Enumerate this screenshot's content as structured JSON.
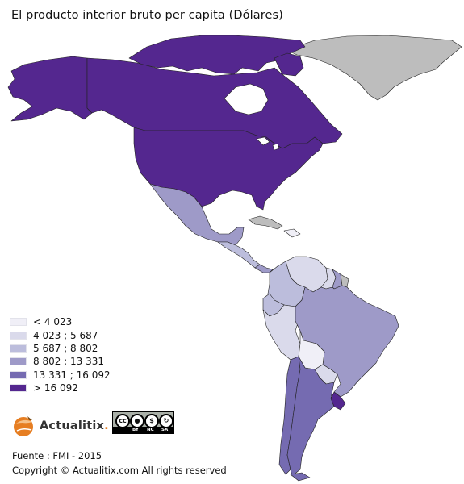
{
  "title": "El producto interior bruto per capita (Dólares)",
  "legend": {
    "items": [
      {
        "label": "< 4 023",
        "color": "#f0eff7"
      },
      {
        "label": "4 023 ; 5 687",
        "color": "#dadaeb"
      },
      {
        "label": "5 687 ; 8 802",
        "color": "#bcbddc"
      },
      {
        "label": "8 802 ; 13 331",
        "color": "#9e9ac8"
      },
      {
        "label": "13 331 ; 16 092",
        "color": "#756bb1"
      },
      {
        "label": "> 16 092",
        "color": "#54278f"
      }
    ]
  },
  "map": {
    "no_data_color": "#bdbdbd",
    "border_color": "#222222",
    "regions": [
      {
        "name": "Canada",
        "class": "> 16 092"
      },
      {
        "name": "United States",
        "class": "> 16 092"
      },
      {
        "name": "Alaska",
        "class": "> 16 092"
      },
      {
        "name": "Greenland",
        "class": "no data"
      },
      {
        "name": "Mexico",
        "class": "8 802 ; 13 331"
      },
      {
        "name": "Central America",
        "class": "5 687 ; 8 802"
      },
      {
        "name": "Panama",
        "class": "8 802 ; 13 331"
      },
      {
        "name": "Cuba",
        "class": "no data"
      },
      {
        "name": "Caribbean",
        "class": "< 4 023"
      },
      {
        "name": "Venezuela",
        "class": "4 023 ; 5 687"
      },
      {
        "name": "Colombia",
        "class": "5 687 ; 8 802"
      },
      {
        "name": "Ecuador",
        "class": "5 687 ; 8 802"
      },
      {
        "name": "Peru",
        "class": "4 023 ; 5 687"
      },
      {
        "name": "Bolivia",
        "class": "< 4 023"
      },
      {
        "name": "Brazil",
        "class": "8 802 ; 13 331"
      },
      {
        "name": "Paraguay",
        "class": "4 023 ; 5 687"
      },
      {
        "name": "Chile",
        "class": "13 331 ; 16 092"
      },
      {
        "name": "Argentina",
        "class": "13 331 ; 16 092"
      },
      {
        "name": "Uruguay",
        "class": "> 16 092"
      },
      {
        "name": "Guyana",
        "class": "4 023 ; 5 687"
      },
      {
        "name": "Suriname",
        "class": "8 802 ; 13 331"
      },
      {
        "name": "French Guiana",
        "class": "no data"
      }
    ]
  },
  "logo": {
    "text": "Actualitix",
    "dot": "."
  },
  "license": {
    "badge_text": "cc",
    "strip_labels": [
      "BY",
      "NC",
      "SA"
    ]
  },
  "source": "Fuente : FMI - 2015",
  "copyright": "Copyright © Actualitix.com All rights reserved"
}
